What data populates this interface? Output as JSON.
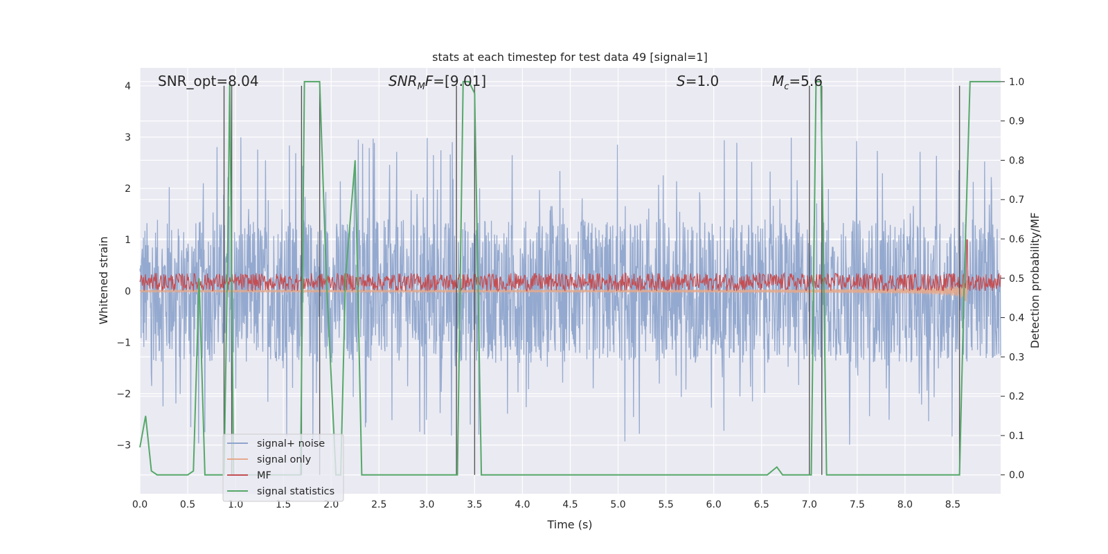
{
  "chart_data": {
    "type": "line",
    "title": "stats at each timestep for test data 49 [signal=1]",
    "xlabel": "Time (s)",
    "ylabel": "Whitened strain",
    "y2label": "Detection probability/MF",
    "xlim": [
      0.0,
      9.0
    ],
    "ylim": [
      -3.95,
      4.35
    ],
    "y2lim": [
      -0.048,
      1.035
    ],
    "x_ticks": [
      "0.0",
      "0.5",
      "1.0",
      "1.5",
      "2.0",
      "2.5",
      "3.0",
      "3.5",
      "4.0",
      "4.5",
      "5.0",
      "5.5",
      "6.0",
      "6.5",
      "7.0",
      "7.5",
      "8.0",
      "8.5"
    ],
    "y_ticks": [
      "−3",
      "−2",
      "−1",
      "0",
      "1",
      "2",
      "3",
      "4"
    ],
    "y2_ticks": [
      "0.0",
      "0.1",
      "0.2",
      "0.3",
      "0.4",
      "0.5",
      "0.6",
      "0.7",
      "0.8",
      "0.9",
      "1.0"
    ],
    "annotations": {
      "snr_opt": "SNR_opt=8.04",
      "snr_mf": "=[9.01]",
      "s": "=1.0",
      "mc": "=5.6"
    },
    "grid": true,
    "legend_position": "lower-left",
    "series": [
      {
        "name": "signal+ noise",
        "color": "#8fa5cc",
        "envelope": [
          -1.4,
          1.4
        ],
        "peaks": [
          -3.5,
          4.0
        ]
      },
      {
        "name": "signal only",
        "color": "#e5a98a",
        "chirp_end_time": 8.65,
        "max_amplitude": 0.55
      },
      {
        "name": "MF",
        "color": "#c44e52",
        "baseline": 0.15,
        "band": [
          0.0,
          0.35
        ],
        "peak": {
          "x": 8.65,
          "y": 1.0
        }
      },
      {
        "name": "signal statistics",
        "color": "#55a868",
        "axis": "right",
        "x": [
          0.0,
          0.06,
          0.12,
          0.18,
          0.5,
          0.56,
          0.62,
          0.68,
          0.88,
          0.92,
          0.94,
          0.98,
          1.68,
          1.72,
          1.78,
          1.88,
          1.95,
          2.05,
          2.1,
          2.15,
          2.25,
          2.32,
          3.32,
          3.38,
          3.44,
          3.5,
          3.57,
          6.56,
          6.66,
          6.72,
          6.82,
          7.02,
          7.07,
          7.12,
          7.18,
          8.57,
          8.62,
          8.68,
          8.75,
          9.0
        ],
        "y": [
          0.07,
          0.15,
          0.01,
          0.0,
          0.0,
          0.01,
          0.5,
          0.0,
          0.0,
          0.6,
          1.0,
          0.0,
          0.0,
          1.0,
          1.0,
          1.0,
          0.5,
          0.0,
          0.0,
          0.5,
          0.8,
          0.0,
          0.0,
          1.0,
          1.0,
          0.97,
          0.0,
          0.0,
          0.02,
          0.0,
          0.0,
          0.0,
          1.0,
          1.0,
          0.0,
          0.0,
          0.5,
          1.0,
          1.0,
          1.0
        ]
      }
    ],
    "vertical_markers": [
      0.88,
      0.96,
      1.69,
      1.88,
      3.31,
      3.5,
      7.0,
      7.13,
      8.57
    ]
  }
}
